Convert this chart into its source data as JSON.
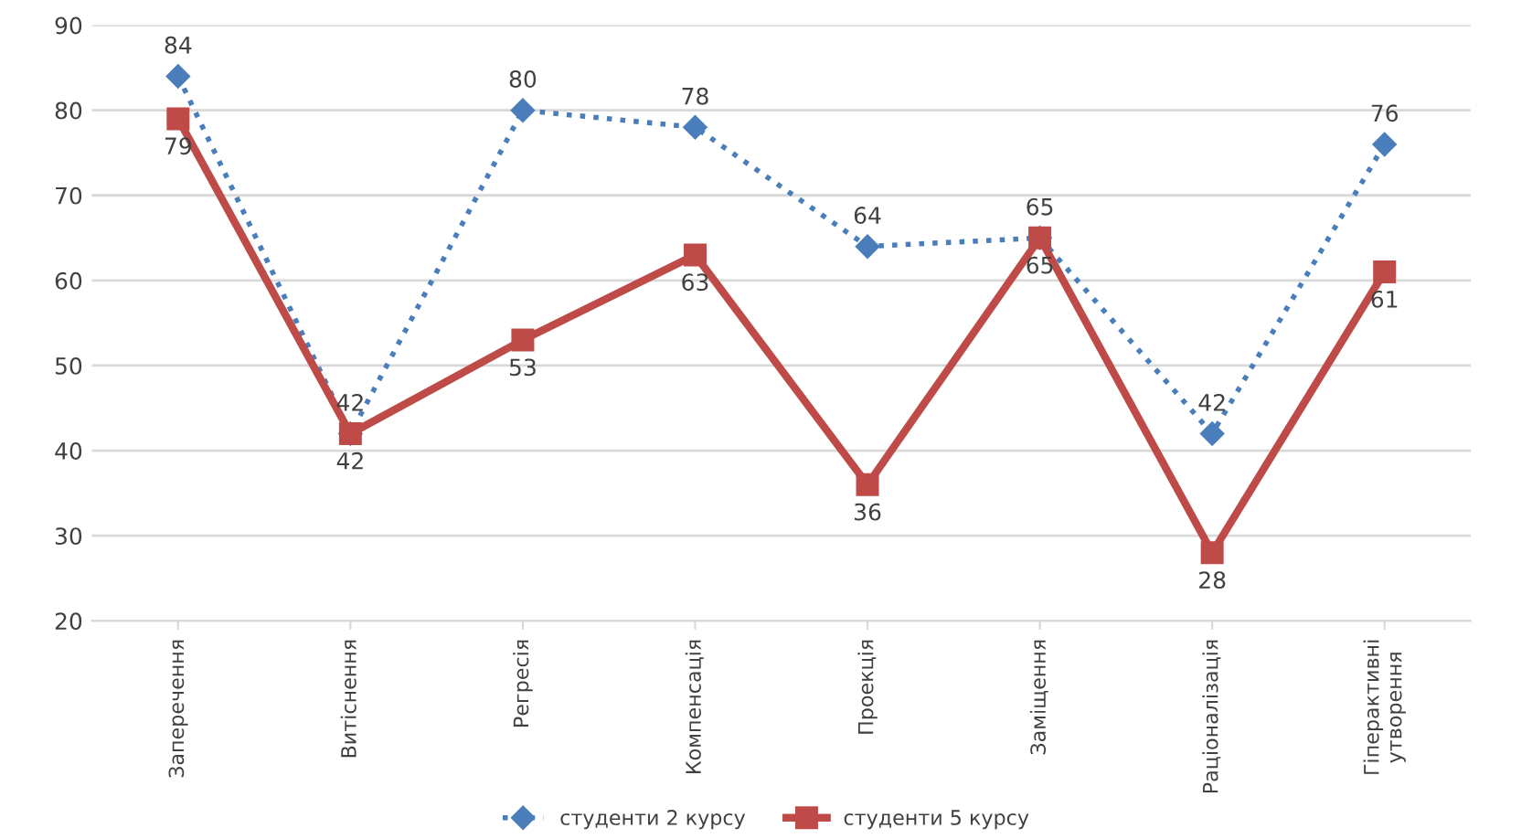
{
  "chart_data": {
    "type": "line",
    "categories": [
      "Заперечення",
      "Витіснення",
      "Регресія",
      "Компенсація",
      "Проекція",
      "Заміщення",
      "Раціоналізація",
      "Гіперактивні\nутворення"
    ],
    "series": [
      {
        "name": "студенти 2 курсу",
        "color": "#4a7ebb",
        "values": [
          84,
          42,
          80,
          78,
          64,
          65,
          42,
          76
        ],
        "marker": "diamond",
        "line_style": "dotted"
      },
      {
        "name": "студенти 5 курсу",
        "color": "#be4b48",
        "values": [
          79,
          42,
          53,
          63,
          36,
          65,
          28,
          61
        ],
        "marker": "square",
        "line_style": "solid"
      }
    ],
    "ylim": [
      20,
      90
    ],
    "yticks": [
      20,
      30,
      40,
      50,
      60,
      70,
      80,
      90
    ],
    "grid": "y",
    "legend": "bottom",
    "data_labels": true
  }
}
